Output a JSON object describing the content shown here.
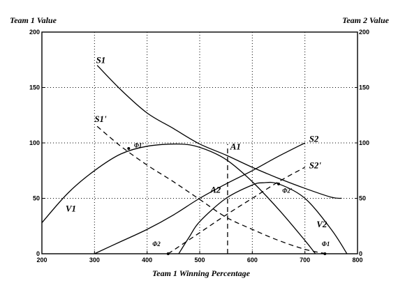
{
  "chart_data": {
    "type": "line",
    "title": "",
    "xlabel": "Team 1 Winning Percentage",
    "ylabel_left": "Team 1 Value",
    "ylabel_right": "Team 2 Value",
    "xlim": [
      200,
      800
    ],
    "ylim": [
      0,
      200
    ],
    "x_ticks": [
      200,
      300,
      400,
      500,
      600,
      700,
      800
    ],
    "y_ticks": [
      0,
      50,
      100,
      150,
      200
    ],
    "x_tick_labels": [
      "200",
      "300",
      "400",
      "500",
      "600",
      "700",
      "800"
    ],
    "y_tick_labels": [
      "0",
      "50",
      "100",
      "150",
      "200"
    ],
    "grid": true,
    "series": [
      {
        "name": "S1",
        "style": "solid",
        "points": [
          [
            305,
            170
          ],
          [
            350,
            148
          ],
          [
            400,
            127
          ],
          [
            450,
            113
          ],
          [
            500,
            99
          ],
          [
            550,
            89
          ],
          [
            600,
            78
          ],
          [
            650,
            68
          ],
          [
            700,
            59
          ],
          [
            750,
            51
          ],
          [
            770,
            50
          ]
        ]
      },
      {
        "name": "S1'",
        "style": "dashed",
        "points": [
          [
            305,
            115
          ],
          [
            350,
            97
          ],
          [
            400,
            80
          ],
          [
            450,
            65
          ],
          [
            500,
            49
          ],
          [
            550,
            33
          ],
          [
            600,
            22
          ],
          [
            650,
            12
          ],
          [
            700,
            4
          ],
          [
            740,
            0
          ]
        ]
      },
      {
        "name": "V1",
        "style": "solid",
        "points": [
          [
            200,
            28
          ],
          [
            250,
            55
          ],
          [
            300,
            75
          ],
          [
            350,
            90
          ],
          [
            400,
            97
          ],
          [
            460,
            99
          ],
          [
            500,
            96
          ],
          [
            550,
            85
          ],
          [
            600,
            65
          ],
          [
            650,
            40
          ],
          [
            700,
            12
          ],
          [
            720,
            0
          ]
        ]
      },
      {
        "name": "S2",
        "style": "solid",
        "points": [
          [
            300,
            0
          ],
          [
            350,
            11
          ],
          [
            400,
            22
          ],
          [
            450,
            35
          ],
          [
            500,
            50
          ],
          [
            550,
            63
          ],
          [
            600,
            75
          ],
          [
            650,
            88
          ],
          [
            700,
            100
          ]
        ]
      },
      {
        "name": "S2'",
        "style": "dashed",
        "points": [
          [
            440,
            0
          ],
          [
            500,
            19
          ],
          [
            550,
            35
          ],
          [
            600,
            50
          ],
          [
            650,
            65
          ],
          [
            700,
            78
          ]
        ]
      },
      {
        "name": "V2",
        "style": "solid",
        "points": [
          [
            460,
            0
          ],
          [
            480,
            15
          ],
          [
            500,
            29
          ],
          [
            550,
            50
          ],
          [
            600,
            62
          ],
          [
            620,
            64
          ],
          [
            650,
            63
          ],
          [
            700,
            50
          ],
          [
            750,
            22
          ],
          [
            780,
            0
          ]
        ]
      }
    ],
    "annotations": [
      {
        "text": "S1",
        "x": 303,
        "y": 172
      },
      {
        "text": "S1'",
        "x": 300,
        "y": 119
      },
      {
        "text": "V1",
        "x": 245,
        "y": 38
      },
      {
        "text": "V2",
        "x": 722,
        "y": 24
      },
      {
        "text": "S2",
        "x": 708,
        "y": 101
      },
      {
        "text": "S2'",
        "x": 708,
        "y": 77
      },
      {
        "text": "A1",
        "x": 558,
        "y": 94
      },
      {
        "text": "A2",
        "x": 520,
        "y": 55
      },
      {
        "text": "Φ1'",
        "x": 375,
        "y": 96,
        "mark_x": 365,
        "mark_y": 95
      },
      {
        "text": "Φ2'",
        "x": 657,
        "y": 55,
        "mark_x": 650,
        "mark_y": 63
      },
      {
        "text": "Φ1",
        "x": 732,
        "y": 7,
        "mark_x": 738,
        "mark_y": 0
      },
      {
        "text": "Φ2",
        "x": 410,
        "y": 7,
        "mark_x": 440,
        "mark_y": 0
      }
    ],
    "guides": [
      {
        "x": 553,
        "y_from": 0,
        "y_to": 99
      }
    ]
  }
}
